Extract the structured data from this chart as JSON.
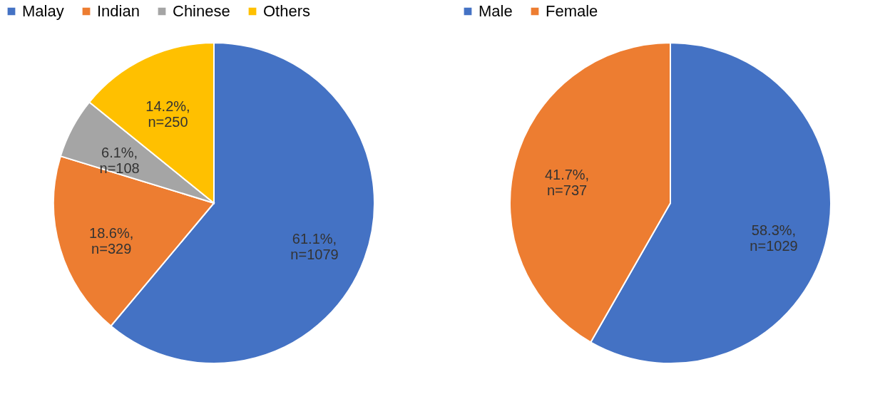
{
  "chart_data": [
    {
      "type": "pie",
      "categories": [
        "Malay",
        "Indian",
        "Chinese",
        "Others"
      ],
      "values": [
        1079,
        329,
        108,
        250
      ],
      "colors": [
        "#4472c4",
        "#ed7d31",
        "#a5a5a5",
        "#ffc000"
      ],
      "value_labels": [
        "61.1%,\nn=1079",
        "18.6%,\nn=329",
        "6.1%,\nn=108",
        "14.2%,\nn=250"
      ],
      "legend": "top"
    },
    {
      "type": "pie",
      "categories": [
        "Male",
        "Female"
      ],
      "values": [
        1029,
        737
      ],
      "colors": [
        "#4472c4",
        "#ed7d31"
      ],
      "value_labels": [
        "58.3%,\nn=1029",
        "41.7%,\nn=737"
      ],
      "legend": "top"
    }
  ]
}
